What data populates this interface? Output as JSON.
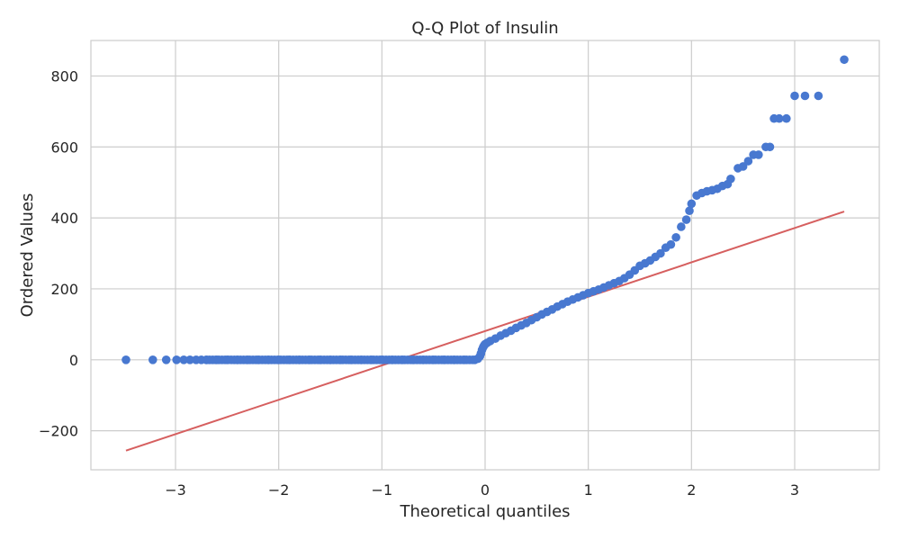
{
  "chart_data": {
    "type": "scatter",
    "title": "Q-Q Plot of Insulin",
    "xlabel": "Theoretical quantiles",
    "ylabel": "Ordered Values",
    "xlim": [
      -3.82,
      3.82
    ],
    "ylim": [
      -310,
      900
    ],
    "xticks": [
      -3,
      -2,
      -1,
      0,
      1,
      2,
      3
    ],
    "yticks": [
      -200,
      0,
      200,
      400,
      600,
      800
    ],
    "xtick_labels": [
      "−3",
      "−2",
      "−1",
      "0",
      "1",
      "2",
      "3"
    ],
    "ytick_labels": [
      "−200",
      "0",
      "200",
      "400",
      "600",
      "800"
    ],
    "grid": true,
    "colors": {
      "points": "#4878d0",
      "fit_line": "#d65f5f",
      "grid": "#cccccc",
      "text": "#262626"
    },
    "fit_line": {
      "x": [
        -3.48,
        3.48
      ],
      "y": [
        -256,
        418
      ]
    },
    "series": [
      {
        "x": [
          -3.48,
          -3.22,
          -3.09,
          -2.99,
          -2.92,
          -2.86,
          -2.8,
          -2.75,
          -2.7,
          -2.6,
          -2.5,
          -2.4,
          -2.3,
          -2.2,
          -2.1,
          -2.0,
          -1.9,
          -1.8,
          -1.7,
          -1.6,
          -1.5,
          -1.4,
          -1.3,
          -1.2,
          -1.1,
          -1.0,
          -0.9,
          -0.8,
          -0.7,
          -0.6,
          -0.5,
          -0.4,
          -0.3,
          -0.2,
          -0.1,
          -0.07,
          -0.05,
          -0.04,
          -0.03,
          -0.02,
          -0.01,
          0.0,
          0.02,
          0.05,
          0.1,
          0.15,
          0.2,
          0.25,
          0.3,
          0.35,
          0.4,
          0.45,
          0.5,
          0.55,
          0.6,
          0.65,
          0.7,
          0.75,
          0.8,
          0.85,
          0.9,
          0.95,
          1.0,
          1.05,
          1.1,
          1.15,
          1.2,
          1.25,
          1.3,
          1.35,
          1.4,
          1.45,
          1.5,
          1.55,
          1.6,
          1.65,
          1.7,
          1.75,
          1.8,
          1.85,
          1.9,
          1.95,
          1.98,
          2.0,
          2.05,
          2.1,
          2.15,
          2.2,
          2.25,
          2.3,
          2.35,
          2.38,
          2.45,
          2.5,
          2.55,
          2.6,
          2.65,
          2.72,
          2.76,
          2.8,
          2.85,
          2.92,
          3.0,
          3.1,
          3.23,
          3.48
        ],
        "y": [
          0,
          0,
          0,
          0,
          0,
          0,
          0,
          0,
          0,
          0,
          0,
          0,
          0,
          0,
          0,
          0,
          0,
          0,
          0,
          0,
          0,
          0,
          0,
          0,
          0,
          0,
          0,
          0,
          0,
          0,
          0,
          0,
          0,
          0,
          0,
          3,
          10,
          18,
          28,
          35,
          40,
          44,
          48,
          53,
          60,
          68,
          75,
          82,
          90,
          97,
          104,
          112,
          120,
          128,
          135,
          142,
          150,
          157,
          164,
          170,
          176,
          182,
          188,
          193,
          198,
          204,
          210,
          216,
          222,
          230,
          240,
          252,
          265,
          272,
          280,
          290,
          300,
          316,
          325,
          345,
          375,
          395,
          420,
          440,
          463,
          470,
          475,
          478,
          482,
          490,
          495,
          510,
          540,
          545,
          560,
          578,
          578,
          600,
          600,
          680,
          680,
          680,
          744,
          744,
          744,
          846
        ]
      }
    ]
  }
}
